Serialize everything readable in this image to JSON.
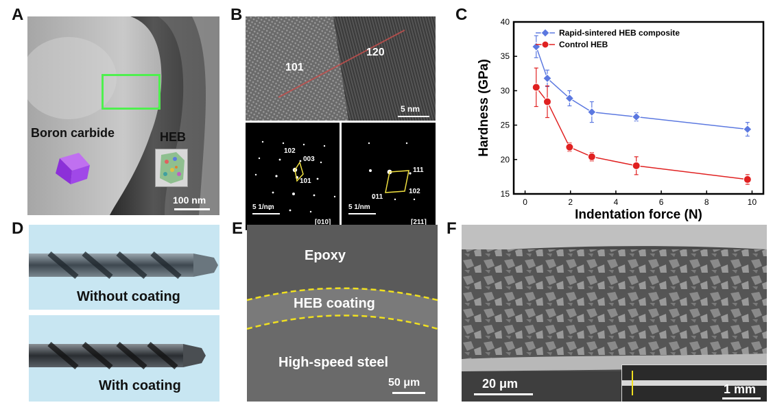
{
  "panels": {
    "a": {
      "letter": "A",
      "boron_label": "Boron carbide",
      "heb_label": "HEB",
      "scale": "100 nm"
    },
    "b": {
      "letter": "B",
      "grain_left": "101",
      "grain_right": "120",
      "scale_top": "5 nm",
      "saed1": {
        "spot_a": "102",
        "spot_b": "003",
        "spot_c": "101",
        "scale": "5 1/nm",
        "zone": "[010]"
      },
      "saed2": {
        "spot_a": "111",
        "spot_b": "102",
        "spot_c": "011",
        "scale": "5 1/nm",
        "zone": "[211]"
      }
    },
    "c": {
      "letter": "C"
    },
    "d": {
      "letter": "D",
      "top_label": "Without coating",
      "bottom_label": "With coating"
    },
    "e": {
      "letter": "E",
      "epoxy": "Epoxy",
      "coating": "HEB coating",
      "steel": "High-speed steel",
      "scale": "50 μm"
    },
    "f": {
      "letter": "F",
      "scale": "20 μm",
      "inset_scale": "1 mm"
    }
  },
  "chart_data": {
    "type": "scatter",
    "xlabel": "Indentation force (N)",
    "ylabel": "Hardness (GPa)",
    "xlim": [
      -0.5,
      10.5
    ],
    "ylim": [
      15,
      40
    ],
    "xticks": [
      "0",
      "2",
      "4",
      "6",
      "8",
      "10"
    ],
    "yticks": [
      "15",
      "20",
      "25",
      "30",
      "35",
      "40"
    ],
    "legend_position": "top-right",
    "series": [
      {
        "name": "Rapid-sintered HEB composite",
        "color": "#5b78e0",
        "x": [
          0.49,
          0.98,
          1.96,
          2.94,
          4.9,
          9.8
        ],
        "y": [
          36.4,
          31.8,
          28.9,
          26.9,
          26.2,
          24.4
        ],
        "err": [
          1.6,
          1.2,
          1.1,
          1.5,
          0.6,
          1.0
        ]
      },
      {
        "name": "Control HEB",
        "color": "#e02020",
        "x": [
          0.49,
          0.98,
          1.96,
          2.94,
          4.9,
          9.8
        ],
        "y": [
          30.5,
          28.4,
          21.8,
          20.4,
          19.1,
          17.1
        ],
        "err": [
          2.8,
          2.3,
          0.6,
          0.6,
          1.3,
          0.7
        ]
      }
    ]
  }
}
